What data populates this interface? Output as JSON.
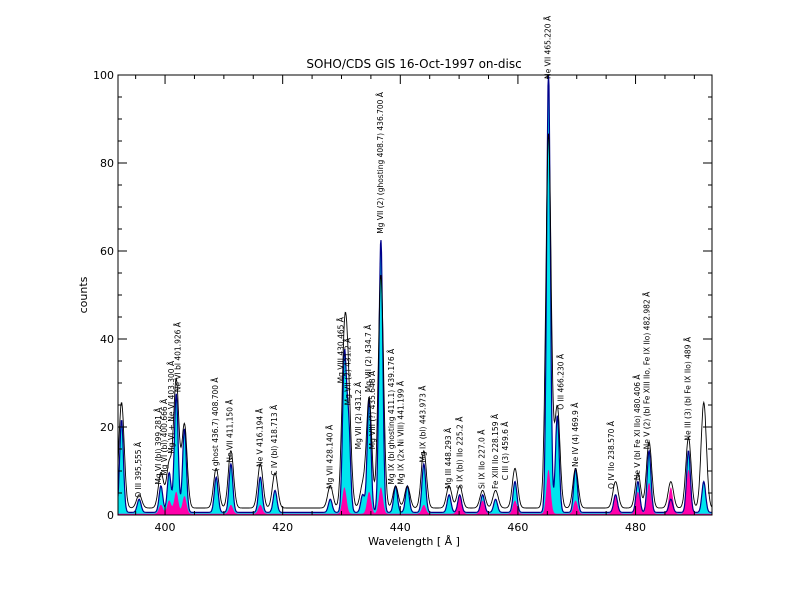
{
  "chart_data": {
    "type": "area",
    "title": "SOHO/CDS GIS  16-Oct-1997 on-disc",
    "xlabel": "Wavelength [ Å ]",
    "ylabel": "counts",
    "xlim": [
      392,
      493
    ],
    "ylim": [
      0,
      100
    ],
    "x_ticks": [
      400,
      420,
      440,
      460,
      480
    ],
    "y_ticks": [
      0,
      20,
      40,
      60,
      80,
      100
    ],
    "colors": {
      "observed": "#00008b",
      "observed_fill": "#00e5ee",
      "model": "#ff00aa",
      "reference": "#000000"
    },
    "series": [
      {
        "key": "observed",
        "peaks": [
          [
            392.6,
            21
          ],
          [
            395.6,
            3
          ],
          [
            399.3,
            6
          ],
          [
            400.7,
            9
          ],
          [
            401.9,
            27
          ],
          [
            403.3,
            19
          ],
          [
            408.7,
            8
          ],
          [
            411.2,
            11
          ],
          [
            416.2,
            8
          ],
          [
            418.7,
            5
          ],
          [
            428.1,
            3
          ],
          [
            430.5,
            35
          ],
          [
            431.2,
            20
          ],
          [
            433.6,
            4
          ],
          [
            434.7,
            26
          ],
          [
            436.7,
            62
          ],
          [
            439.2,
            6
          ],
          [
            441.2,
            6
          ],
          [
            444.0,
            11
          ],
          [
            448.3,
            4
          ],
          [
            450.1,
            4
          ],
          [
            454.0,
            4
          ],
          [
            456.2,
            3
          ],
          [
            459.5,
            7
          ],
          [
            465.2,
            100
          ],
          [
            466.7,
            22
          ],
          [
            469.8,
            10
          ],
          [
            476.6,
            4
          ],
          [
            480.4,
            7
          ],
          [
            482.3,
            14
          ],
          [
            486.0,
            3
          ],
          [
            489.0,
            14
          ],
          [
            491.6,
            7
          ]
        ]
      },
      {
        "key": "model",
        "peaks": [
          [
            399.3,
            2
          ],
          [
            400.7,
            3
          ],
          [
            401.9,
            5
          ],
          [
            403.3,
            4
          ],
          [
            411.2,
            2
          ],
          [
            416.2,
            2
          ],
          [
            430.5,
            6
          ],
          [
            434.7,
            5
          ],
          [
            436.7,
            6
          ],
          [
            444.0,
            2
          ],
          [
            450.1,
            4
          ],
          [
            454.0,
            3
          ],
          [
            459.5,
            3
          ],
          [
            465.2,
            10
          ],
          [
            469.8,
            3
          ],
          [
            476.6,
            4
          ],
          [
            480.4,
            5
          ],
          [
            482.3,
            7
          ],
          [
            486.0,
            6
          ],
          [
            489.0,
            10
          ]
        ]
      },
      {
        "key": "reference",
        "peaks": [
          [
            392.6,
            24
          ],
          [
            395.6,
            3
          ],
          [
            399.3,
            8
          ],
          [
            400.7,
            10
          ],
          [
            401.9,
            29
          ],
          [
            403.3,
            19
          ],
          [
            408.7,
            9
          ],
          [
            411.2,
            13
          ],
          [
            416.2,
            10
          ],
          [
            418.7,
            8
          ],
          [
            428.1,
            5
          ],
          [
            430.5,
            36
          ],
          [
            431.2,
            22
          ],
          [
            433.6,
            5
          ],
          [
            434.7,
            25
          ],
          [
            436.7,
            53
          ],
          [
            439.2,
            5
          ],
          [
            441.2,
            5
          ],
          [
            444.0,
            13
          ],
          [
            448.3,
            5
          ],
          [
            450.1,
            5
          ],
          [
            454.0,
            4
          ],
          [
            456.2,
            4
          ],
          [
            459.5,
            9
          ],
          [
            465.2,
            85
          ],
          [
            466.7,
            23
          ],
          [
            469.8,
            9
          ],
          [
            476.6,
            6
          ],
          [
            480.4,
            8
          ],
          [
            482.3,
            15
          ],
          [
            486.0,
            6
          ],
          [
            489.0,
            16
          ],
          [
            491.6,
            24
          ]
        ]
      }
    ],
    "annotations": [
      {
        "x": 395.555,
        "y": 3,
        "text": "O III 395,555 Å"
      },
      {
        "x": 399.0,
        "y": 6,
        "text": "Mg VI (bl) 399.281 Å"
      },
      {
        "x": 400.0,
        "y": 8,
        "text": "Mg VI (bl) 400.666 Å"
      },
      {
        "x": 401.2,
        "y": 13,
        "text": "Mg VI + Ne VI 403.300 Å"
      },
      {
        "x": 402.3,
        "y": 27,
        "text": "Ne VI bl 401.926 Å"
      },
      {
        "x": 408.7,
        "y": 9,
        "text": "( ghost 436.7) 408.700 Å"
      },
      {
        "x": 411.15,
        "y": 11,
        "text": "Ne VII  411,150 Å"
      },
      {
        "x": 416.194,
        "y": 10,
        "text": "Ne V 416.194 Å"
      },
      {
        "x": 418.713,
        "y": 8,
        "text": "C IV (bl) 418.713 Å"
      },
      {
        "x": 428.14,
        "y": 5,
        "text": "Mg VII  428.140 Å"
      },
      {
        "x": 430.0,
        "y": 29,
        "text": "Mg VIII  430.465 Å"
      },
      {
        "x": 431.2,
        "y": 24,
        "text": "Mg VII (2)  431.2 Å"
      },
      {
        "x": 433.0,
        "y": 14,
        "text": "Mg VII (2)  431.2 Å"
      },
      {
        "x": 435.4,
        "y": 14,
        "text": "Mg VIII (?) 435.648 Å"
      },
      {
        "x": 434.7,
        "y": 27,
        "text": "Mg VII (2)  434.7 Å"
      },
      {
        "x": 436.7,
        "y": 63,
        "text": "Mg VII (2) (ghosting 408.7) 436.700 Å"
      },
      {
        "x": 438.6,
        "y": 6,
        "text": "Mg IX (bl ghosting 411.1) 439.176 Å"
      },
      {
        "x": 440.2,
        "y": 6,
        "text": "Mg IX (2x Ni VIII) 441.199 Å"
      },
      {
        "x": 443.973,
        "y": 11,
        "text": "Mg IX (bl) 443.973 Å"
      },
      {
        "x": 448.293,
        "y": 5,
        "text": "Mg III 448.293 Å"
      },
      {
        "x": 450.2,
        "y": 5,
        "text": "S IX (bl) IIo 225.2 Å"
      },
      {
        "x": 454.0,
        "y": 5,
        "text": "Si IX IIo 227.0 Å"
      },
      {
        "x": 456.3,
        "y": 5,
        "text": "Fe XIII IIo 228.159 Å"
      },
      {
        "x": 458.0,
        "y": 7,
        "text": "C III (3)  459.6 Å"
      },
      {
        "x": 465.22,
        "y": 100,
        "text": "Ne VII 465.220 Å"
      },
      {
        "x": 467.4,
        "y": 23,
        "text": "O III  466.230 Å"
      },
      {
        "x": 469.9,
        "y": 10,
        "text": "Ne IV  (4)  469.9 Å"
      },
      {
        "x": 476.0,
        "y": 5,
        "text": "O IV  IIo  238.570 Å"
      },
      {
        "x": 480.406,
        "y": 7,
        "text": "Ne V (bl Fe XI IIo) 480.406 Å"
      },
      {
        "x": 482.0,
        "y": 14,
        "text": "Ne V (2) (bl Fe XIII IIo, Fe IX IIo) 482.982 Å"
      },
      {
        "x": 489.0,
        "y": 16,
        "text": "Ne III (3) (bl Fe IX IIo) 489  Å"
      }
    ]
  }
}
